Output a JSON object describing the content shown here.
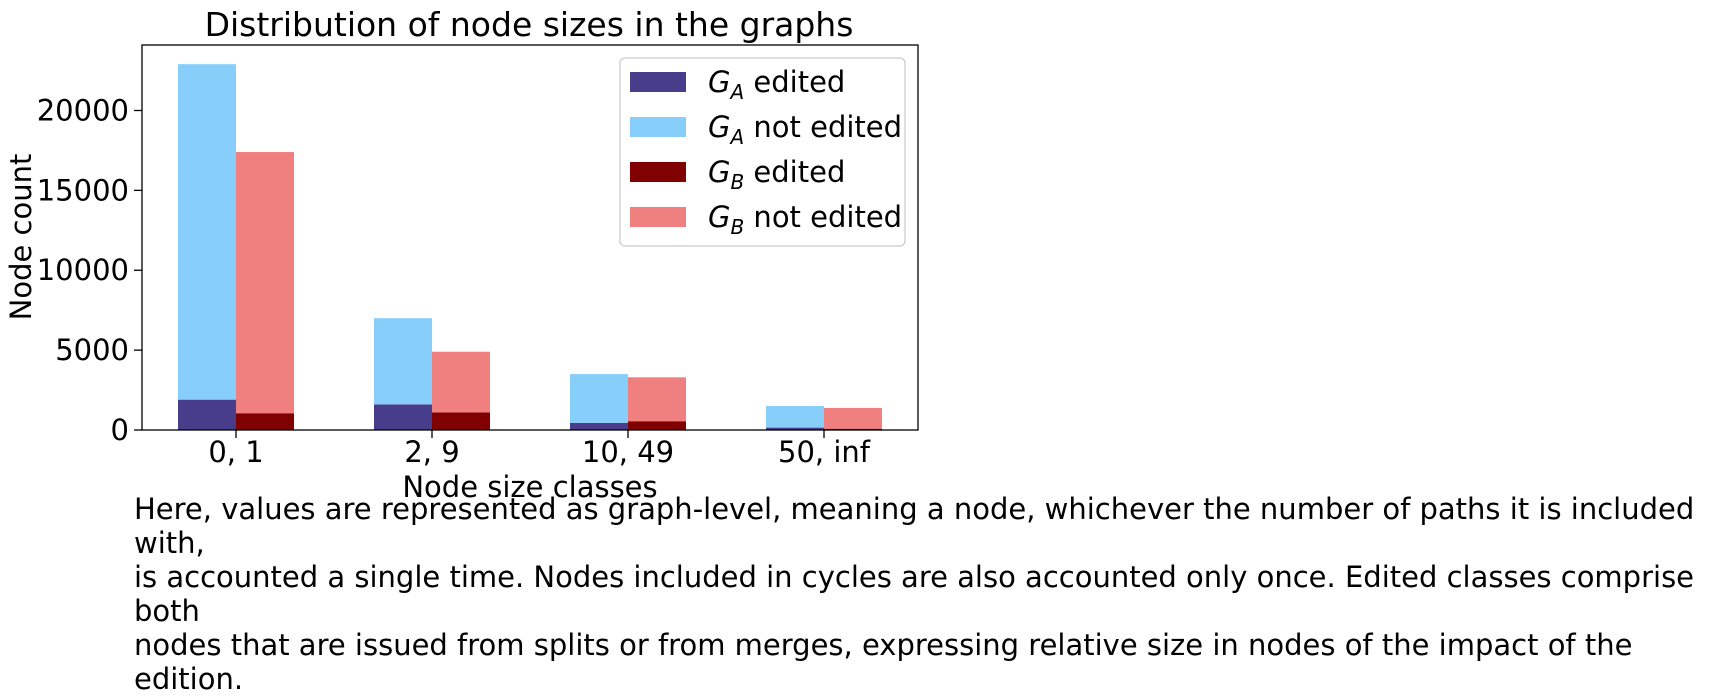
{
  "chart_data": {
    "type": "bar",
    "title": "Distribution of node sizes in the graphs",
    "xlabel": "Node size classes",
    "ylabel": "Node count",
    "categories": [
      "0, 1",
      "2, 9",
      "10, 49",
      "50, inf"
    ],
    "ylim": [
      0,
      24100
    ],
    "yticks": [
      0,
      5000,
      10000,
      15000,
      20000
    ],
    "ytick_labels": [
      "0",
      "5000",
      "10000",
      "15000",
      "20000"
    ],
    "grid": false,
    "legend_position": "top-right",
    "stacked_within_graph": true,
    "series": [
      {
        "name": "edited",
        "graph": "A",
        "color": "#483d8b",
        "values": [
          1900,
          1600,
          450,
          150
        ]
      },
      {
        "name": "not edited",
        "graph": "A",
        "color": "#87cefa",
        "values": [
          21000,
          5400,
          3050,
          1350
        ]
      },
      {
        "name": "edited",
        "graph": "B",
        "color": "#800000",
        "values": [
          1050,
          1100,
          550,
          80
        ]
      },
      {
        "name": "not edited",
        "graph": "B",
        "color": "#f08080",
        "values": [
          16350,
          3800,
          2750,
          1300
        ]
      }
    ]
  },
  "caption": "Here, values are represented as graph-level, meaning a node, whichever the number of paths it is included with,\nis accounted a single time. Nodes included in cycles are also accounted only once. Edited classes comprise both\nnodes that are issued from splits or from merges, expressing relative size in nodes of the impact of the edition."
}
